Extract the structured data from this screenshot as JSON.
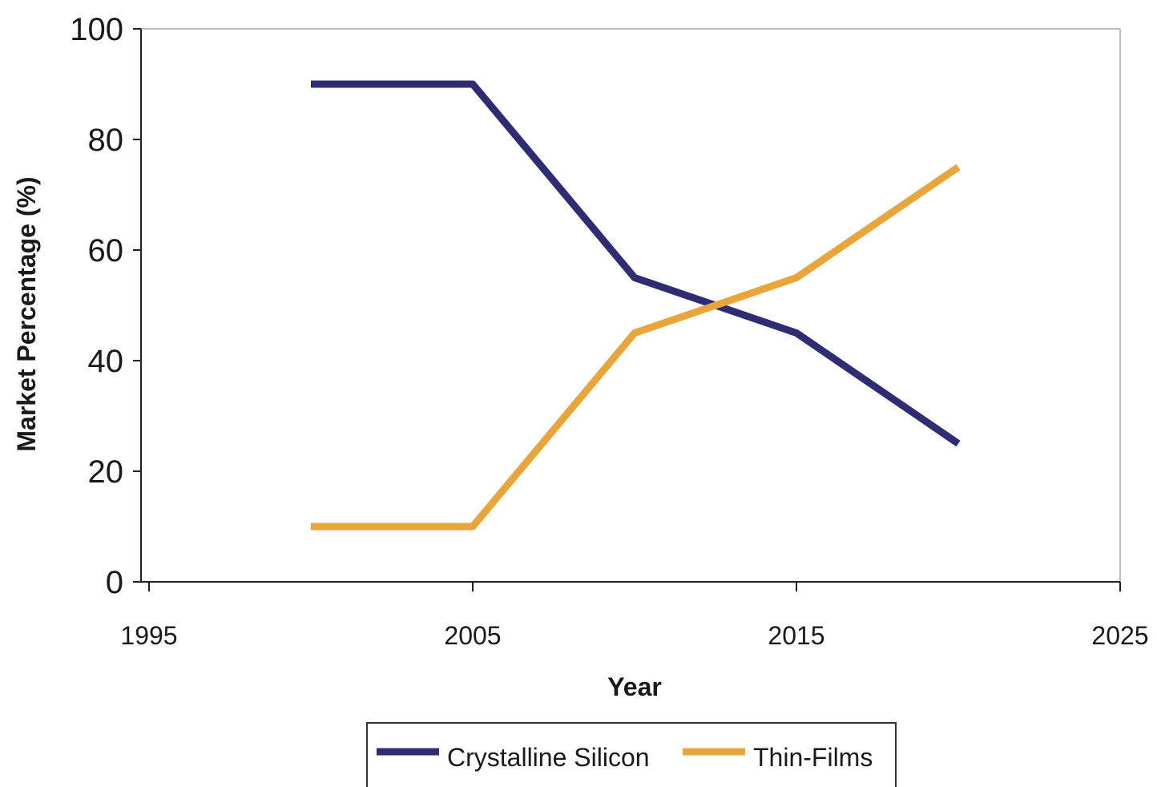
{
  "chart_data": {
    "type": "line",
    "xlabel": "Year",
    "ylabel": "Market Percentage (%)",
    "xlim": [
      1995,
      2025
    ],
    "ylim": [
      0,
      100
    ],
    "xticks": [
      1995,
      2005,
      2015,
      2025
    ],
    "yticks": [
      0,
      20,
      40,
      60,
      80,
      100
    ],
    "grid": false,
    "legend_position": "bottom",
    "series": [
      {
        "name": "Crystalline Silicon",
        "color": "#2e2c72",
        "x": [
          2000,
          2005,
          2010,
          2015,
          2020
        ],
        "y": [
          90,
          90,
          55,
          45,
          25
        ]
      },
      {
        "name": "Thin-Films",
        "color": "#e9a43a",
        "x": [
          2000,
          2005,
          2010,
          2015,
          2020
        ],
        "y": [
          10,
          10,
          45,
          55,
          75
        ]
      }
    ]
  }
}
